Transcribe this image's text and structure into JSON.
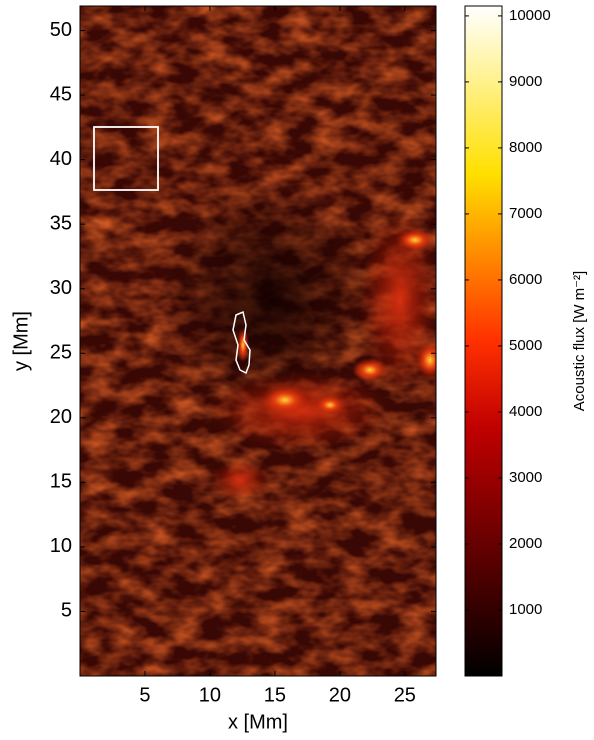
{
  "chart_data": {
    "type": "image",
    "xlabel": "x [Mm]",
    "ylabel": "y [Mm]",
    "xlim": [
      0,
      27.4
    ],
    "xticks": [
      5,
      10,
      15,
      20,
      25
    ],
    "ylim": [
      0,
      51.9
    ],
    "yticks": [
      5,
      10,
      15,
      20,
      25,
      30,
      35,
      40,
      45,
      50
    ],
    "colormap": "hot",
    "colorbar_label": "Acoustic flux [W m⁻²]",
    "clim": [
      0,
      10150
    ],
    "cticks": [
      1000,
      2000,
      3000,
      4000,
      5000,
      6000,
      7000,
      8000,
      9000,
      10000
    ]
  }
}
